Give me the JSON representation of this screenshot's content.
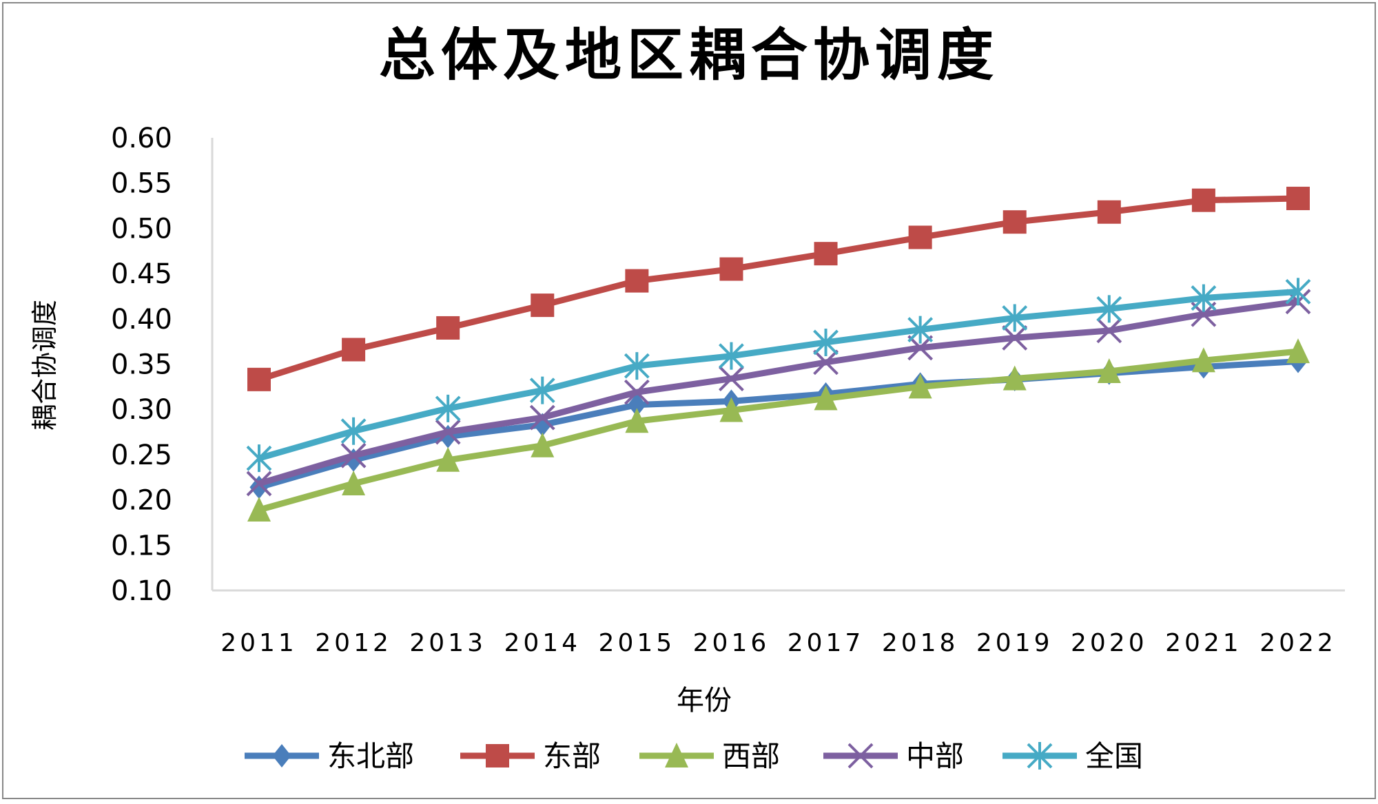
{
  "chart_data": {
    "type": "line",
    "title": "总体及地区耦合协调度",
    "xlabel": "年份",
    "ylabel": "耦合协调度",
    "categories": [
      "2011",
      "2012",
      "2013",
      "2014",
      "2015",
      "2016",
      "2017",
      "2018",
      "2019",
      "2020",
      "2021",
      "2022"
    ],
    "ylim": [
      0.1,
      0.6
    ],
    "yticks": [
      "0.10",
      "0.15",
      "0.20",
      "0.25",
      "0.30",
      "0.35",
      "0.40",
      "0.45",
      "0.50",
      "0.55",
      "0.60"
    ],
    "grid": false,
    "legend_position": "bottom",
    "series": [
      {
        "name": "东北部",
        "color": "#4a7ebb",
        "marker": "diamond",
        "values": [
          0.214,
          0.244,
          0.27,
          0.283,
          0.305,
          0.309,
          0.317,
          0.328,
          0.333,
          0.34,
          0.347,
          0.353
        ]
      },
      {
        "name": "东部",
        "color": "#be4b48",
        "marker": "square",
        "values": [
          0.333,
          0.366,
          0.39,
          0.415,
          0.442,
          0.455,
          0.472,
          0.49,
          0.507,
          0.518,
          0.531,
          0.533
        ]
      },
      {
        "name": "西部",
        "color": "#98b954",
        "marker": "triangle",
        "values": [
          0.189,
          0.218,
          0.244,
          0.26,
          0.287,
          0.299,
          0.312,
          0.325,
          0.334,
          0.342,
          0.354,
          0.364
        ]
      },
      {
        "name": "中部",
        "color": "#7d60a0",
        "marker": "x",
        "values": [
          0.218,
          0.249,
          0.275,
          0.291,
          0.319,
          0.334,
          0.352,
          0.368,
          0.379,
          0.387,
          0.405,
          0.419
        ]
      },
      {
        "name": "全国",
        "color": "#46aac5",
        "marker": "star",
        "values": [
          0.246,
          0.276,
          0.301,
          0.321,
          0.348,
          0.359,
          0.374,
          0.388,
          0.401,
          0.411,
          0.423,
          0.43
        ]
      }
    ]
  }
}
